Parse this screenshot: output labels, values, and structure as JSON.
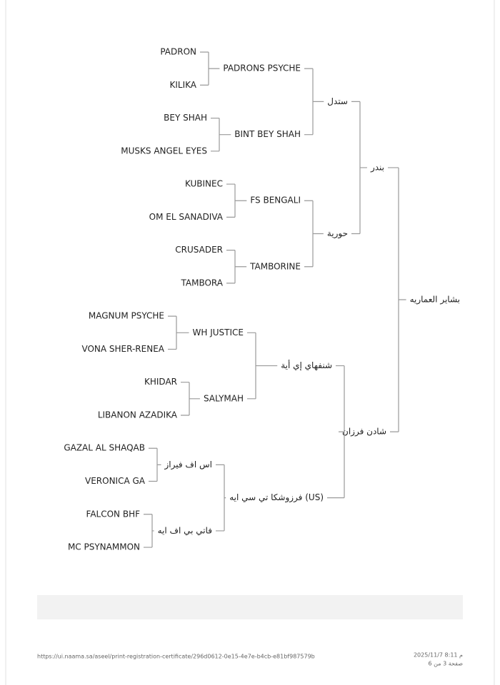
{
  "pedigree": {
    "label": "بشاير العماريه",
    "sire": {
      "label": "بندر",
      "sire": {
        "label": "ستدل",
        "sire": {
          "label": "PADRONS PSYCHE",
          "sire": {
            "label": "PADRON"
          },
          "dam": {
            "label": "KILIKA"
          }
        },
        "dam": {
          "label": "BINT BEY SHAH",
          "sire": {
            "label": "BEY SHAH"
          },
          "dam": {
            "label": "MUSKS ANGEL EYES"
          }
        }
      },
      "dam": {
        "label": "حورية",
        "sire": {
          "label": "FS BENGALI",
          "sire": {
            "label": "KUBINEC"
          },
          "dam": {
            "label": "OM EL SANADIVA"
          }
        },
        "dam": {
          "label": "TAMBORINE",
          "sire": {
            "label": "CRUSADER"
          },
          "dam": {
            "label": "TAMBORA"
          }
        }
      }
    },
    "dam": {
      "label": "شادن فرزان",
      "sire": {
        "label": "شنفهاي إي أية",
        "sire": {
          "label": "WH JUSTICE",
          "sire": {
            "label": "MAGNUM PSYCHE"
          },
          "dam": {
            "label": "VONA SHER-RENEA"
          }
        },
        "dam": {
          "label": "SALYMAH",
          "sire": {
            "label": "KHIDAR"
          },
          "dam": {
            "label": "LIBANON AZADIKA"
          }
        }
      },
      "dam": {
        "label": "فرزوشكا تي سي ايه (US)",
        "sire": {
          "label": "اس اف فيراز",
          "sire": {
            "label": "GAZAL AL SHAQAB"
          },
          "dam": {
            "label": "VERONICA GA"
          }
        },
        "dam": {
          "label": "فاتي بي اف ايه",
          "sire": {
            "label": "FALCON BHF"
          },
          "dam": {
            "label": "MC PSYNAMMON"
          }
        }
      }
    }
  },
  "footer": {
    "url": "https://ui.naama.sa/aseel/print-registration-certificate/296d0612-0e15-4e7e-b4cb-e81bf987579b",
    "datetime": "2025/11/7 8:11 م",
    "page": "صفحة 3 من 6"
  }
}
